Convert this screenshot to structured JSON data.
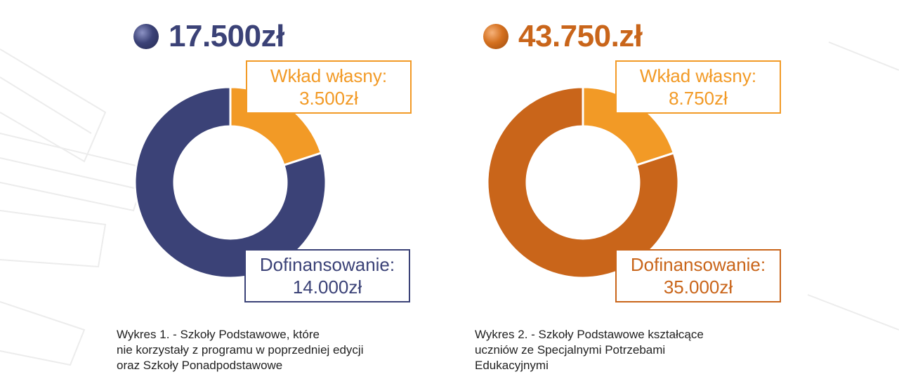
{
  "colors": {
    "navy": "#3b4277",
    "orange_dark": "#c9651a",
    "orange_light": "#f29a26",
    "caption_text": "#222222"
  },
  "chart_data": [
    {
      "type": "pie",
      "title": "17.500zł",
      "slices": [
        {
          "label": "Wkład własny:",
          "value_label": "3.500zł",
          "value": 3500,
          "color": "#f29a26"
        },
        {
          "label": "Dofinansowanie:",
          "value_label": "14.000zł",
          "value": 14000,
          "color": "#3b4277"
        }
      ],
      "caption_lines": [
        "Wykres 1. - Szkoły Podstawowe, które",
        "nie korzystały z programu w poprzedniej edycji",
        "oraz Szkoły Ponadpodstawowe"
      ]
    },
    {
      "type": "pie",
      "title": "43.750.zł",
      "slices": [
        {
          "label": "Wkład własny:",
          "value_label": "8.750zł",
          "value": 8750,
          "color": "#f29a26"
        },
        {
          "label": "Dofinansowanie:",
          "value_label": "35.000zł",
          "value": 35000,
          "color": "#c9651a"
        }
      ],
      "caption_lines": [
        "Wykres 2. - Szkoły Podstawowe kształcące",
        "uczniów ze Specjalnymi Potrzebami",
        "Edukacyjnymi"
      ]
    }
  ]
}
